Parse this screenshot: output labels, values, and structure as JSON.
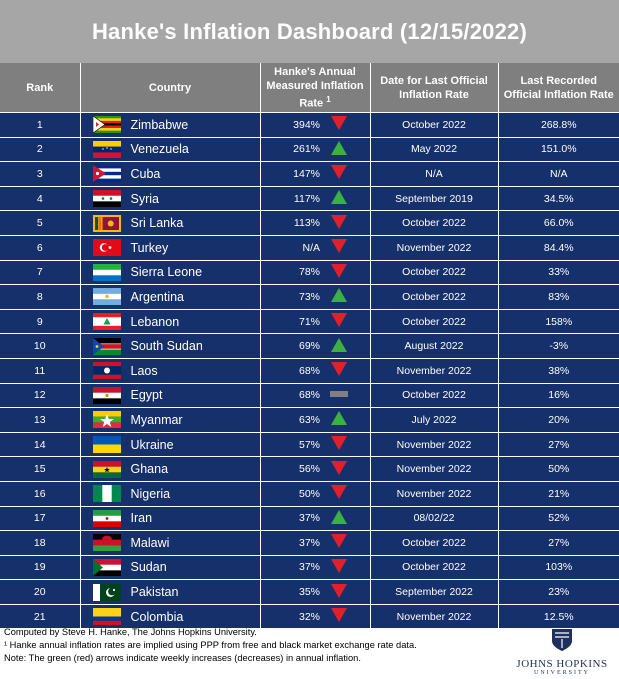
{
  "title": "Hanke's Inflation Dashboard (12/15/2022)",
  "headers": {
    "rank": "Rank",
    "country": "Country",
    "hanke_line1": "Hanke's Annual",
    "hanke_line2": "Measured Inflation",
    "hanke_line3": "Rate",
    "hanke_sup": "1",
    "date": "Date for Last Official Inflation Rate",
    "official": "Last Recorded Official Inflation Rate"
  },
  "colors": {
    "up": "#3cb043",
    "down": "#e0202b",
    "flat": "#808080",
    "row_bg": "#15306a",
    "header_bg": "#7f7f7f",
    "title_bg": "#a6a6a6"
  },
  "rows": [
    {
      "rank": "1",
      "country": "Zimbabwe",
      "flag": "zimbabwe",
      "hanke": "394%",
      "dir": "down",
      "date": "October 2022",
      "official": "268.8%"
    },
    {
      "rank": "2",
      "country": "Venezuela",
      "flag": "venezuela",
      "hanke": "261%",
      "dir": "up",
      "date": "May 2022",
      "official": "151.0%"
    },
    {
      "rank": "3",
      "country": "Cuba",
      "flag": "cuba",
      "hanke": "147%",
      "dir": "down",
      "date": "N/A",
      "official": "N/A"
    },
    {
      "rank": "4",
      "country": "Syria",
      "flag": "syria",
      "hanke": "117%",
      "dir": "up",
      "date": "September 2019",
      "official": "34.5%"
    },
    {
      "rank": "5",
      "country": "Sri Lanka",
      "flag": "srilanka",
      "hanke": "113%",
      "dir": "down",
      "date": "October 2022",
      "official": "66.0%"
    },
    {
      "rank": "6",
      "country": "Turkey",
      "flag": "turkey",
      "hanke": "N/A",
      "dir": "down",
      "date": "November 2022",
      "official": "84.4%"
    },
    {
      "rank": "7",
      "country": "Sierra Leone",
      "flag": "sierraleone",
      "hanke": "78%",
      "dir": "down",
      "date": "October 2022",
      "official": "33%"
    },
    {
      "rank": "8",
      "country": "Argentina",
      "flag": "argentina",
      "hanke": "73%",
      "dir": "up",
      "date": "October 2022",
      "official": "83%"
    },
    {
      "rank": "9",
      "country": "Lebanon",
      "flag": "lebanon",
      "hanke": "71%",
      "dir": "down",
      "date": "October 2022",
      "official": "158%"
    },
    {
      "rank": "10",
      "country": "South Sudan",
      "flag": "southsudan",
      "hanke": "69%",
      "dir": "up",
      "date": "August 2022",
      "official": "-3%"
    },
    {
      "rank": "11",
      "country": "Laos",
      "flag": "laos",
      "hanke": "68%",
      "dir": "down",
      "date": "November 2022",
      "official": "38%"
    },
    {
      "rank": "12",
      "country": "Egypt",
      "flag": "egypt",
      "hanke": "68%",
      "dir": "flat",
      "date": "October 2022",
      "official": "16%"
    },
    {
      "rank": "13",
      "country": "Myanmar",
      "flag": "myanmar",
      "hanke": "63%",
      "dir": "up",
      "date": "July 2022",
      "official": "20%"
    },
    {
      "rank": "14",
      "country": "Ukraine",
      "flag": "ukraine",
      "hanke": "57%",
      "dir": "down",
      "date": "November 2022",
      "official": "27%"
    },
    {
      "rank": "15",
      "country": "Ghana",
      "flag": "ghana",
      "hanke": "56%",
      "dir": "down",
      "date": "November 2022",
      "official": "50%"
    },
    {
      "rank": "16",
      "country": "Nigeria",
      "flag": "nigeria",
      "hanke": "50%",
      "dir": "down",
      "date": "November 2022",
      "official": "21%"
    },
    {
      "rank": "17",
      "country": "Iran",
      "flag": "iran",
      "hanke": "37%",
      "dir": "up",
      "date": "08/02/22",
      "official": "52%"
    },
    {
      "rank": "18",
      "country": "Malawi",
      "flag": "malawi",
      "hanke": "37%",
      "dir": "down",
      "date": "October 2022",
      "official": "27%"
    },
    {
      "rank": "19",
      "country": "Sudan",
      "flag": "sudan",
      "hanke": "37%",
      "dir": "down",
      "date": "October 2022",
      "official": "103%"
    },
    {
      "rank": "20",
      "country": "Pakistan",
      "flag": "pakistan",
      "hanke": "35%",
      "dir": "down",
      "date": "September 2022",
      "official": "23%"
    },
    {
      "rank": "21",
      "country": "Colombia",
      "flag": "colombia",
      "hanke": "32%",
      "dir": "down",
      "date": "November 2022",
      "official": "12.5%"
    }
  ],
  "footer": {
    "line1": "Computed by Steve H. Hanke, The Johns Hopkins University.",
    "line2": "¹ Hanke annual inflation rates are implied using PPP from free and black market exchange rate data.",
    "line3": "Note: The green (red) arrows indicate weekly increases (decreases) in annual inflation."
  },
  "logo": {
    "name": "JOHNS HOPKINS",
    "sub": "UNIVERSITY"
  }
}
